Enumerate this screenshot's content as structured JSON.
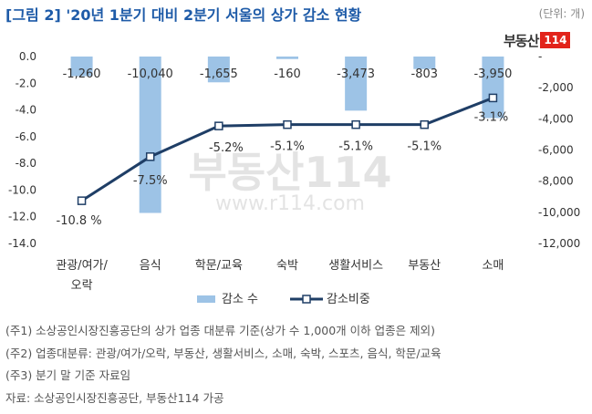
{
  "title": "[그림 2] '20년 1분기 대비 2분기 서울의 상가 감소 현황",
  "unit_label": "(단위: 개)",
  "logo_text": "부동산",
  "logo_badge": "114",
  "watermark": {
    "brand": "부동산114",
    "url": "www.r114.com"
  },
  "colors": {
    "bar": "#9dc3e6",
    "line": "#1f3e66",
    "title": "#1e5ba8",
    "logo_badge": "#e2231a"
  },
  "chart_data": {
    "type": "bar+line",
    "categories": [
      "관광/여가/오락",
      "음식",
      "학문/교육",
      "숙박",
      "생활서비스",
      "부동산",
      "소매"
    ],
    "category_lines": [
      [
        "관광/여가/",
        "오락"
      ],
      [
        "음식"
      ],
      [
        "학문/교육"
      ],
      [
        "숙박"
      ],
      [
        "생활서비스"
      ],
      [
        "부동산"
      ],
      [
        "소매"
      ]
    ],
    "series": [
      {
        "name": "감소 수",
        "type": "bar",
        "axis": "right",
        "values": [
          -1260,
          -10040,
          -1655,
          -160,
          -3473,
          -803,
          -3950
        ],
        "labels": [
          "-1,260",
          "-10,040",
          "-1,655",
          "-160",
          "-3,473",
          "-803",
          "-3,950"
        ]
      },
      {
        "name": "감소비중",
        "type": "line",
        "axis": "left",
        "values": [
          -10.8,
          -7.5,
          -5.2,
          -5.1,
          -5.1,
          -5.1,
          -3.1
        ],
        "labels": [
          "-10.8 %",
          "-7.5%",
          "-5.2%",
          "-5.1%",
          "-5.1%",
          "-5.1%",
          "-3.1%"
        ]
      }
    ],
    "left_axis": {
      "range": [
        -14,
        0
      ],
      "ticks": [
        "-14.0",
        "-12.0",
        "-10.0",
        "-8.0",
        "-6.0",
        "-4.0",
        "-2.0",
        "0.0"
      ]
    },
    "right_axis": {
      "range": [
        -12000,
        0
      ],
      "ticks": [
        "-12,000",
        "-10,000",
        "-8,000",
        "-6,000",
        "-4,000",
        "-2,000",
        "-"
      ]
    },
    "legend": {
      "placement": "bottom"
    },
    "grid": false
  },
  "notes": [
    "(주1) 소상공인시장진흥공단의 상가 업종 대분류 기준(상가 수 1,000개 이하 업종은 제외)",
    "(주2) 업종대분류: 관광/여가/오락, 부동산, 생활서비스, 소매, 숙박, 스포츠, 음식, 학문/교육",
    "(주3) 분기 말 기준 자료임",
    "자료: 소상공인시장진흥공단, 부동산114 가공"
  ]
}
